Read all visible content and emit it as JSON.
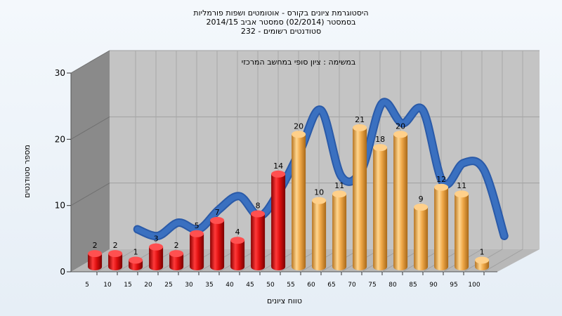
{
  "chart_data": {
    "type": "bar",
    "title_lines": [
      "היסטוגרמת ציונים בקורס - אוטומטים ושפות פורמליות",
      "בסמסטר  (02/2014)  סמסטר אביב 2014/15",
      "232 - סטודנטים רשומים"
    ],
    "subtitle": "במשימה : ציון סופי במחשב המרכזי",
    "xlabel": "טווח ציונים",
    "ylabel": "מספר סטודנטים",
    "categories": [
      "5",
      "10",
      "15",
      "20",
      "25",
      "30",
      "35",
      "40",
      "45",
      "50",
      "55",
      "60",
      "65",
      "70",
      "75",
      "80",
      "85",
      "90",
      "95",
      "100"
    ],
    "values": [
      2,
      2,
      1,
      3,
      2,
      5,
      7,
      4,
      8,
      14,
      20,
      10,
      11,
      21,
      18,
      20,
      9,
      12,
      11,
      1
    ],
    "fail_count": 10,
    "ylim": [
      0,
      30
    ],
    "yticks": [
      0,
      10,
      20,
      30
    ],
    "grid": true,
    "colors": {
      "fail_bar": "#e01010",
      "pass_bar": "#f0a848",
      "ribbon": "#3a70c0",
      "plot_back": "#c4c4c4",
      "floor": "#b8b8b8",
      "left_wall": "#8a8a8a"
    }
  }
}
